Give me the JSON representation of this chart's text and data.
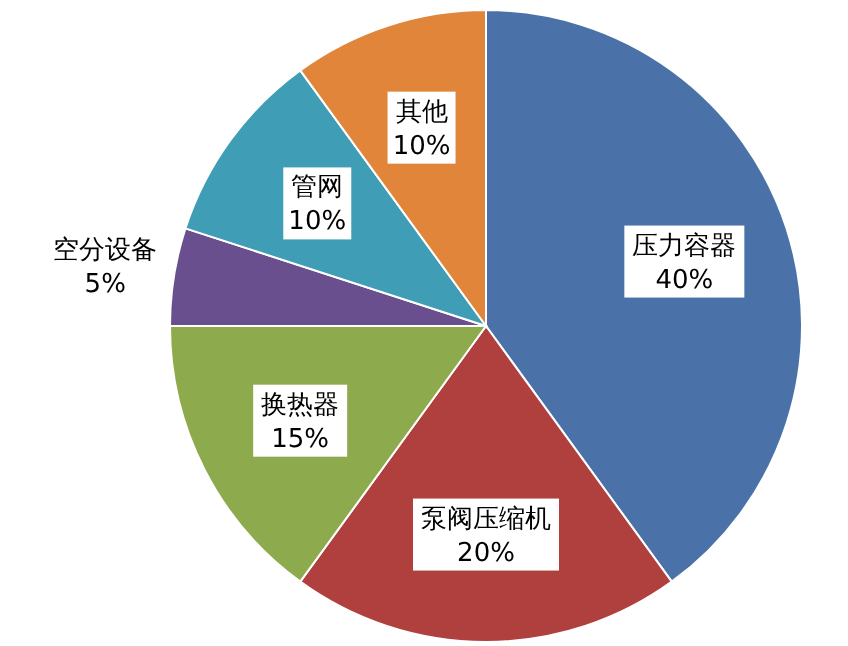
{
  "chart_data": {
    "type": "pie",
    "categories": [
      "压力容器",
      "泵阀压缩机",
      "换热器",
      "空分设备",
      "管网",
      "其他"
    ],
    "values": [
      40,
      20,
      15,
      5,
      10,
      10
    ],
    "colors": [
      "#4a72a8",
      "#b0403d",
      "#8daa4c",
      "#6a4f8f",
      "#3f9db5",
      "#e0853a"
    ],
    "value_labels": [
      "40%",
      "20%",
      "15%",
      "5%",
      "10%",
      "10%"
    ]
  }
}
